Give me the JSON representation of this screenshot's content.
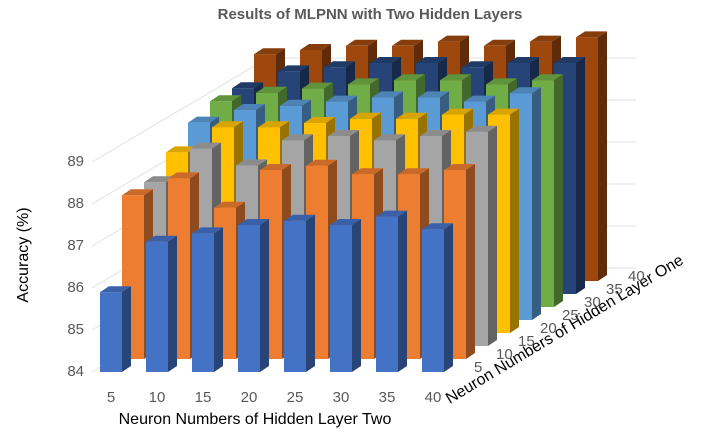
{
  "chart_data": {
    "type": "bar3d",
    "title": "Results of MLPNN with Two Hidden Layers",
    "ylabel": "Accuracy (%)",
    "xlabel": "Neuron Numbers of Hidden Layer Two",
    "zlabel": "Neuron Numbers of Hidden Layer One",
    "categories": [
      "5",
      "10",
      "15",
      "20",
      "25",
      "30",
      "35",
      "40"
    ],
    "series": [
      {
        "name": "5",
        "color": "#4472c4",
        "values": [
          85.9,
          87.1,
          87.3,
          87.5,
          87.6,
          87.5,
          87.7,
          87.4
        ]
      },
      {
        "name": "10",
        "color": "#ed7d31",
        "values": [
          87.9,
          88.3,
          87.6,
          88.5,
          88.6,
          88.4,
          88.4,
          88.5
        ]
      },
      {
        "name": "15",
        "color": "#a5a5a5",
        "values": [
          87.9,
          88.7,
          88.3,
          88.9,
          89.0,
          88.9,
          89.0,
          89.1
        ]
      },
      {
        "name": "20",
        "color": "#ffc000",
        "values": [
          88.3,
          88.9,
          88.9,
          89.0,
          89.1,
          89.1,
          89.2,
          89.2
        ]
      },
      {
        "name": "25",
        "color": "#5b9bd5",
        "values": [
          88.7,
          89.0,
          89.1,
          89.2,
          89.3,
          89.3,
          89.2,
          89.4
        ]
      },
      {
        "name": "30",
        "color": "#70ad47",
        "values": [
          88.9,
          89.1,
          89.2,
          89.3,
          89.4,
          89.4,
          89.3,
          89.4
        ]
      },
      {
        "name": "35",
        "color": "#264478",
        "values": [
          88.9,
          89.3,
          89.4,
          89.5,
          89.5,
          89.4,
          89.5,
          89.5
        ]
      },
      {
        "name": "40",
        "color": "#9e480e",
        "values": [
          89.4,
          89.5,
          89.6,
          89.6,
          89.7,
          89.6,
          89.7,
          89.8
        ]
      }
    ],
    "ylim": [
      84,
      90
    ],
    "yticks": [
      84,
      85,
      86,
      87,
      88,
      89
    ],
    "grid": true
  }
}
